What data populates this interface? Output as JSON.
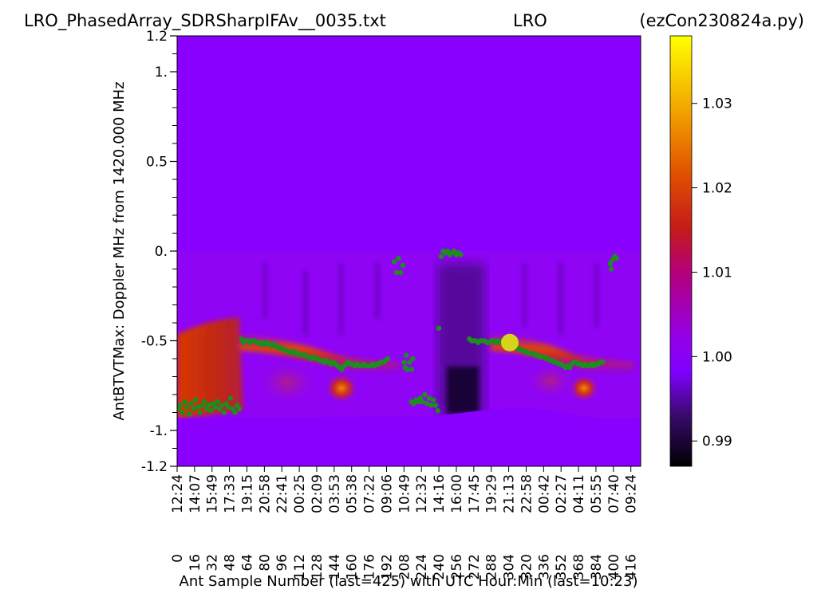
{
  "title": {
    "left": "LRO_PhasedArray_SDRSharpIFAv__0035.txt",
    "center": "LRO",
    "right": "(ezCon230824a.py)"
  },
  "chart_data": {
    "type": "heatmap",
    "xlabel": "Ant Sample Number (last=425) with UTC Hour:Min (last=10:23)",
    "ylabel": "AntBTVTMax:  Doppler MHz from 1420.000 MHz",
    "xlim": [
      0,
      425
    ],
    "ylim": [
      -1.2,
      1.2
    ],
    "x_ticks": [
      0,
      16,
      32,
      48,
      64,
      80,
      96,
      112,
      128,
      144,
      160,
      176,
      192,
      208,
      224,
      240,
      256,
      272,
      288,
      304,
      320,
      336,
      352,
      368,
      384,
      400,
      416
    ],
    "x_time_labels": [
      "12:24",
      "14:07",
      "15:49",
      "17:33",
      "19:15",
      "20:58",
      "22:41",
      "00:25",
      "02:09",
      "03:53",
      "05:38",
      "07:22",
      "09:06",
      "10:49",
      "12:32",
      "14:16",
      "16:00",
      "17:45",
      "19:29",
      "21:13",
      "22:58",
      "00:42",
      "02:27",
      "04:11",
      "05:55",
      "07:40",
      "09:24"
    ],
    "y_ticks": [
      {
        "value": 1.2,
        "label": "1.2"
      },
      {
        "value": 1.0,
        "label": "1."
      },
      {
        "value": 0.5,
        "label": "0.5"
      },
      {
        "value": 0.0,
        "label": "0."
      },
      {
        "value": -0.5,
        "label": "-0.5"
      },
      {
        "value": -1.0,
        "label": "-1."
      },
      {
        "value": -1.2,
        "label": "-1.2"
      }
    ],
    "colorbar": {
      "colormap": "gnuplot",
      "range": [
        0.987,
        1.038
      ],
      "ticks": [
        {
          "value": 0.99,
          "label": "0.99"
        },
        {
          "value": 1.0,
          "label": "1.00"
        },
        {
          "value": 1.01,
          "label": "1.01"
        },
        {
          "value": 1.02,
          "label": "1.02"
        },
        {
          "value": 1.03,
          "label": "1.03"
        }
      ]
    },
    "background_value": 0.998,
    "highlight_marker": {
      "x": 305,
      "y": -0.51,
      "color": "#d4d41a"
    },
    "max_trace": {
      "color": "#1f8c1f",
      "points": [
        [
          1,
          -0.88
        ],
        [
          3,
          -0.86
        ],
        [
          5,
          -0.9
        ],
        [
          7,
          -0.84
        ],
        [
          9,
          -0.87
        ],
        [
          11,
          -0.91
        ],
        [
          13,
          -0.85
        ],
        [
          15,
          -0.88
        ],
        [
          17,
          -0.83
        ],
        [
          19,
          -0.87
        ],
        [
          21,
          -0.9
        ],
        [
          23,
          -0.86
        ],
        [
          25,
          -0.84
        ],
        [
          27,
          -0.88
        ],
        [
          29,
          -0.86
        ],
        [
          31,
          -0.89
        ],
        [
          33,
          -0.85
        ],
        [
          35,
          -0.87
        ],
        [
          37,
          -0.84
        ],
        [
          39,
          -0.88
        ],
        [
          41,
          -0.86
        ],
        [
          43,
          -0.9
        ],
        [
          45,
          -0.85
        ],
        [
          47,
          -0.87
        ],
        [
          49,
          -0.82
        ],
        [
          51,
          -0.88
        ],
        [
          53,
          -0.9
        ],
        [
          55,
          -0.86
        ],
        [
          57,
          -0.88
        ],
        [
          59,
          -0.49
        ],
        [
          61,
          -0.51
        ],
        [
          63,
          -0.5
        ],
        [
          65,
          -0.5
        ],
        [
          67,
          -0.51
        ],
        [
          69,
          -0.5
        ],
        [
          71,
          -0.5
        ],
        [
          73,
          -0.51
        ],
        [
          75,
          -0.51
        ],
        [
          77,
          -0.52
        ],
        [
          79,
          -0.51
        ],
        [
          81,
          -0.52
        ],
        [
          83,
          -0.51
        ],
        [
          85,
          -0.52
        ],
        [
          87,
          -0.53
        ],
        [
          89,
          -0.52
        ],
        [
          91,
          -0.53
        ],
        [
          93,
          -0.54
        ],
        [
          95,
          -0.54
        ],
        [
          97,
          -0.55
        ],
        [
          99,
          -0.55
        ],
        [
          101,
          -0.56
        ],
        [
          103,
          -0.56
        ],
        [
          105,
          -0.57
        ],
        [
          107,
          -0.56
        ],
        [
          109,
          -0.57
        ],
        [
          111,
          -0.57
        ],
        [
          113,
          -0.58
        ],
        [
          115,
          -0.58
        ],
        [
          117,
          -0.58
        ],
        [
          119,
          -0.59
        ],
        [
          121,
          -0.59
        ],
        [
          123,
          -0.6
        ],
        [
          125,
          -0.59
        ],
        [
          127,
          -0.6
        ],
        [
          129,
          -0.6
        ],
        [
          131,
          -0.61
        ],
        [
          133,
          -0.61
        ],
        [
          135,
          -0.62
        ],
        [
          137,
          -0.61
        ],
        [
          139,
          -0.62
        ],
        [
          141,
          -0.63
        ],
        [
          143,
          -0.62
        ],
        [
          145,
          -0.63
        ],
        [
          147,
          -0.64
        ],
        [
          149,
          -0.65
        ],
        [
          151,
          -0.66
        ],
        [
          153,
          -0.64
        ],
        [
          155,
          -0.63
        ],
        [
          157,
          -0.62
        ],
        [
          159,
          -0.63
        ],
        [
          161,
          -0.63
        ],
        [
          163,
          -0.64
        ],
        [
          165,
          -0.63
        ],
        [
          167,
          -0.64
        ],
        [
          169,
          -0.64
        ],
        [
          171,
          -0.63
        ],
        [
          173,
          -0.64
        ],
        [
          175,
          -0.64
        ],
        [
          177,
          -0.64
        ],
        [
          179,
          -0.63
        ],
        [
          181,
          -0.64
        ],
        [
          183,
          -0.63
        ],
        [
          185,
          -0.63
        ],
        [
          187,
          -0.62
        ],
        [
          189,
          -0.62
        ],
        [
          191,
          -0.61
        ],
        [
          193,
          -0.6
        ],
        [
          199,
          -0.06
        ],
        [
          201,
          -0.12
        ],
        [
          203,
          -0.04
        ],
        [
          205,
          -0.12
        ],
        [
          207,
          -0.08
        ],
        [
          208,
          -0.62
        ],
        [
          209,
          -0.65
        ],
        [
          210,
          -0.58
        ],
        [
          211,
          -0.66
        ],
        [
          213,
          -0.62
        ],
        [
          215,
          -0.66
        ],
        [
          216,
          -0.6
        ],
        [
          215,
          -0.84
        ],
        [
          217,
          -0.85
        ],
        [
          219,
          -0.83
        ],
        [
          221,
          -0.84
        ],
        [
          223,
          -0.82
        ],
        [
          225,
          -0.84
        ],
        [
          227,
          -0.8
        ],
        [
          229,
          -0.85
        ],
        [
          231,
          -0.82
        ],
        [
          233,
          -0.86
        ],
        [
          235,
          -0.83
        ],
        [
          237,
          -0.86
        ],
        [
          239,
          -0.89
        ],
        [
          240,
          -0.43
        ],
        [
          242,
          -0.03
        ],
        [
          244,
          0.0
        ],
        [
          246,
          -0.01
        ],
        [
          248,
          0.0
        ],
        [
          250,
          -0.02
        ],
        [
          252,
          -0.01
        ],
        [
          254,
          0.0
        ],
        [
          256,
          -0.02
        ],
        [
          258,
          -0.01
        ],
        [
          260,
          -0.02
        ],
        [
          268,
          -0.49
        ],
        [
          270,
          -0.5
        ],
        [
          272,
          -0.5
        ],
        [
          274,
          -0.5
        ],
        [
          276,
          -0.51
        ],
        [
          278,
          -0.5
        ],
        [
          280,
          -0.5
        ],
        [
          282,
          -0.5
        ],
        [
          284,
          -0.51
        ],
        [
          286,
          -0.51
        ],
        [
          288,
          -0.5
        ],
        [
          290,
          -0.5
        ],
        [
          292,
          -0.51
        ],
        [
          294,
          -0.5
        ],
        [
          296,
          -0.51
        ],
        [
          298,
          -0.5
        ],
        [
          300,
          -0.51
        ],
        [
          302,
          -0.52
        ],
        [
          306,
          -0.52
        ],
        [
          308,
          -0.53
        ],
        [
          310,
          -0.54
        ],
        [
          312,
          -0.54
        ],
        [
          314,
          -0.55
        ],
        [
          316,
          -0.55
        ],
        [
          318,
          -0.56
        ],
        [
          320,
          -0.56
        ],
        [
          322,
          -0.57
        ],
        [
          324,
          -0.57
        ],
        [
          326,
          -0.57
        ],
        [
          328,
          -0.58
        ],
        [
          330,
          -0.58
        ],
        [
          332,
          -0.59
        ],
        [
          334,
          -0.59
        ],
        [
          336,
          -0.59
        ],
        [
          338,
          -0.6
        ],
        [
          340,
          -0.6
        ],
        [
          342,
          -0.61
        ],
        [
          344,
          -0.61
        ],
        [
          346,
          -0.62
        ],
        [
          348,
          -0.62
        ],
        [
          350,
          -0.63
        ],
        [
          352,
          -0.63
        ],
        [
          354,
          -0.64
        ],
        [
          356,
          -0.65
        ],
        [
          358,
          -0.64
        ],
        [
          360,
          -0.65
        ],
        [
          362,
          -0.63
        ],
        [
          364,
          -0.62
        ],
        [
          366,
          -0.62
        ],
        [
          368,
          -0.63
        ],
        [
          370,
          -0.63
        ],
        [
          372,
          -0.64
        ],
        [
          374,
          -0.63
        ],
        [
          376,
          -0.64
        ],
        [
          378,
          -0.64
        ],
        [
          380,
          -0.63
        ],
        [
          382,
          -0.64
        ],
        [
          384,
          -0.63
        ],
        [
          386,
          -0.63
        ],
        [
          388,
          -0.62
        ],
        [
          390,
          -0.62
        ],
        [
          397,
          -0.07
        ],
        [
          399,
          -0.05
        ],
        [
          401,
          -0.03
        ],
        [
          403,
          -0.04
        ],
        [
          398,
          -0.1
        ]
      ]
    }
  }
}
